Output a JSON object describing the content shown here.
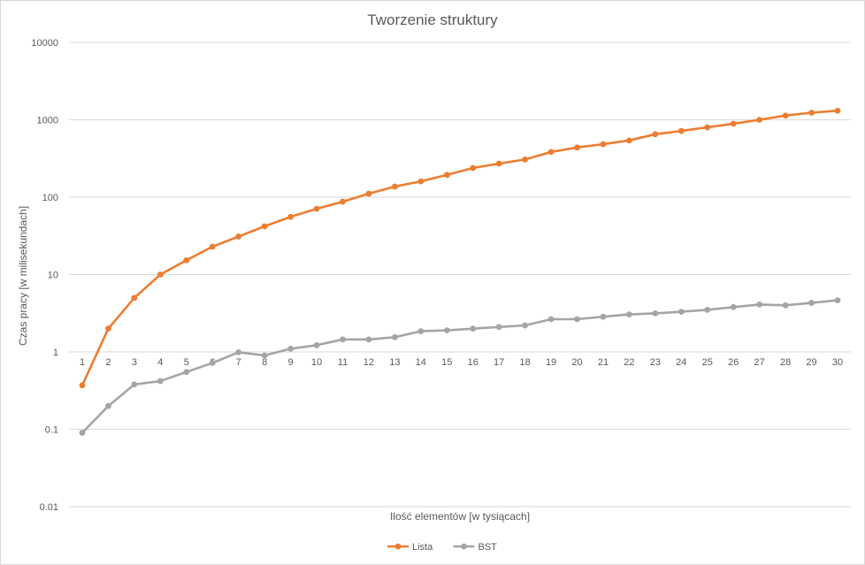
{
  "chart_data": {
    "type": "line",
    "title": "Tworzenie struktury",
    "xlabel": "Ilość elementów [w tysiącach]",
    "ylabel": "Czas pracy [w milisekundach]",
    "yscale": "log",
    "ylim": [
      0.01,
      10000
    ],
    "y_ticks": [
      "0.01",
      "0.1",
      "1",
      "10",
      "100",
      "1000",
      "10000"
    ],
    "grid": true,
    "legend_position": "bottom",
    "categories": [
      "1",
      "2",
      "3",
      "4",
      "5",
      "6",
      "7",
      "8",
      "9",
      "10",
      "11",
      "12",
      "13",
      "14",
      "15",
      "16",
      "17",
      "18",
      "19",
      "20",
      "21",
      "22",
      "23",
      "24",
      "25",
      "26",
      "27",
      "28",
      "29",
      "30"
    ],
    "series": [
      {
        "name": "Lista",
        "color": "#ed7d31",
        "values": [
          0.37,
          2.0,
          5.0,
          10.0,
          15.3,
          22.9,
          31.0,
          42.0,
          55.7,
          70.8,
          87.5,
          111,
          137,
          160,
          194,
          238,
          272,
          307,
          384,
          439,
          484,
          541,
          651,
          718,
          800,
          891,
          1000,
          1134,
          1234,
          1310
        ]
      },
      {
        "name": "BST",
        "color": "#a5a5a5",
        "values": [
          0.09,
          0.2,
          0.38,
          0.42,
          0.55,
          0.72,
          0.99,
          0.9,
          1.1,
          1.22,
          1.45,
          1.45,
          1.55,
          1.85,
          1.9,
          2.0,
          2.1,
          2.2,
          2.65,
          2.65,
          2.85,
          3.05,
          3.15,
          3.3,
          3.5,
          3.8,
          4.1,
          4.0,
          4.3,
          4.65
        ]
      }
    ]
  }
}
